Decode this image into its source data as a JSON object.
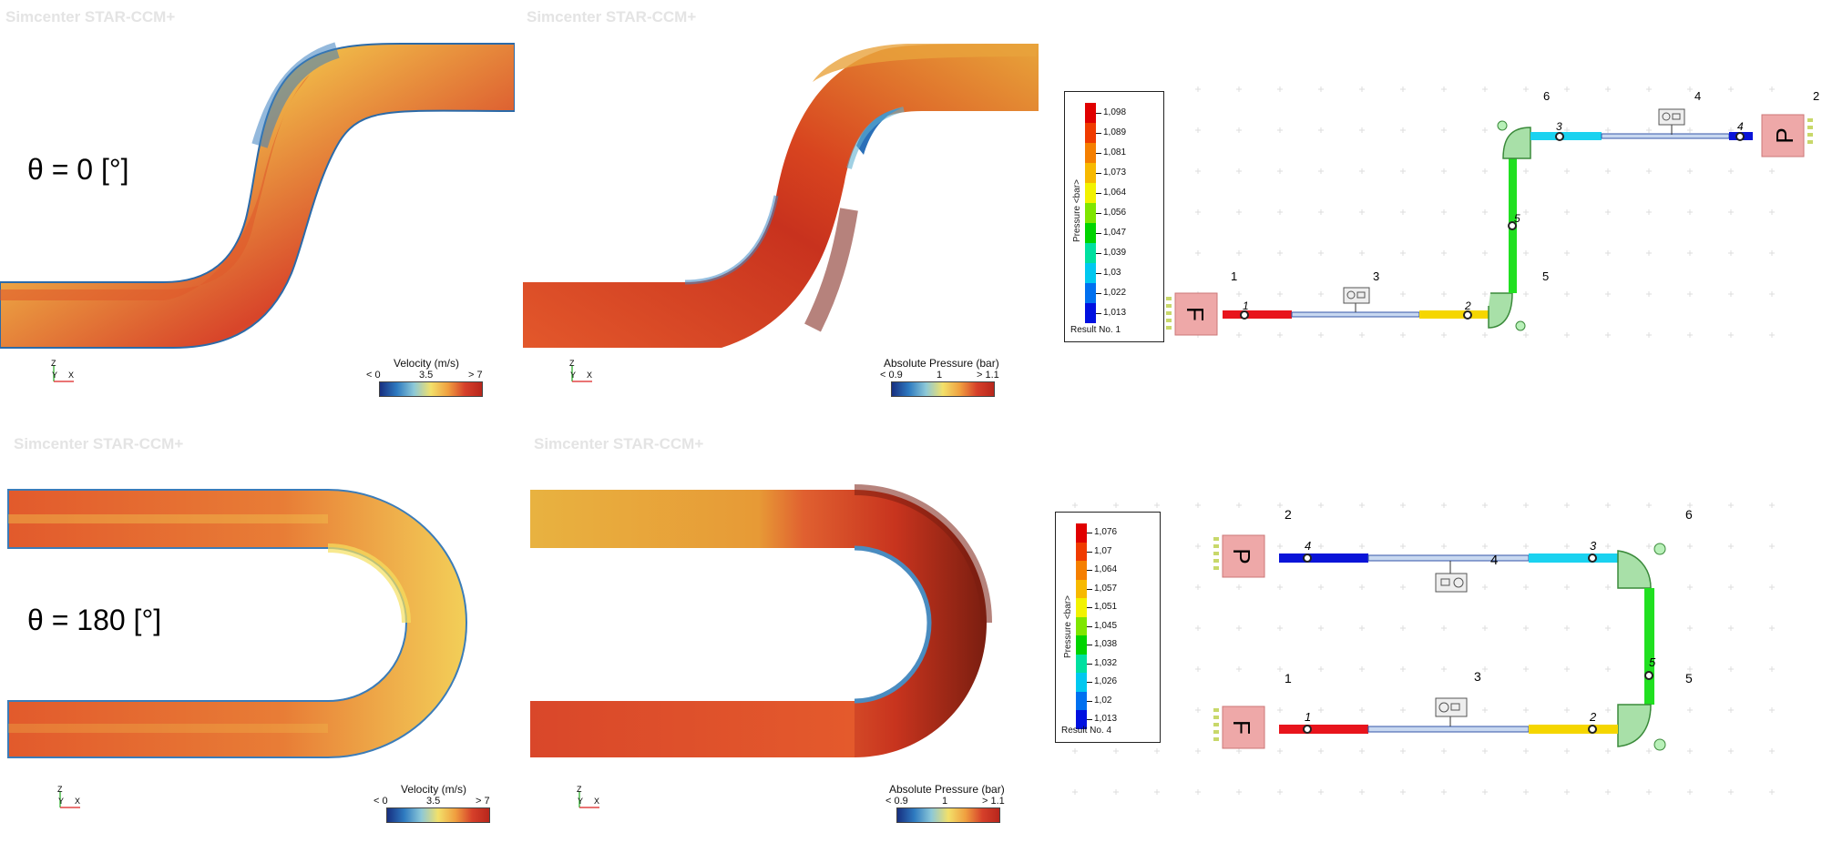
{
  "watermark": "Simcenter STAR-CCM+",
  "rows": [
    {
      "theta_label": "θ = 0 [°]",
      "velocity_bar": {
        "title": "Velocity (m/s)",
        "ticks": [
          "< 0",
          "3.5",
          "> 7"
        ]
      },
      "pressure_bar": {
        "title": "Absolute Pressure (bar)",
        "ticks": [
          "< 0.9",
          "1",
          "> 1.1"
        ]
      },
      "legend": {
        "axis_title": "Pressure <bar>",
        "values": [
          "1,098",
          "1,089",
          "1,081",
          "1,073",
          "1,064",
          "1,056",
          "1,047",
          "1,039",
          "1,03",
          "1,022",
          "1,013"
        ],
        "result": "Result No. 1"
      },
      "network": {
        "source_label": "F",
        "sink_label": "P",
        "node_numbers": [
          "1",
          "3",
          "5",
          "6",
          "4",
          "2"
        ],
        "pipe_numbers": [
          "1",
          "2",
          "3",
          "4",
          "5"
        ]
      }
    },
    {
      "theta_label": "θ = 180 [°]",
      "velocity_bar": {
        "title": "Velocity (m/s)",
        "ticks": [
          "< 0",
          "3.5",
          "> 7"
        ]
      },
      "pressure_bar": {
        "title": "Absolute Pressure (bar)",
        "ticks": [
          "< 0.9",
          "1",
          "> 1.1"
        ]
      },
      "legend": {
        "axis_title": "Pressure <bar>",
        "values": [
          "1,076",
          "1,07",
          "1,064",
          "1,057",
          "1,051",
          "1,045",
          "1,038",
          "1,032",
          "1,026",
          "1,02",
          "1,013"
        ],
        "result": "Result No. 4"
      },
      "network": {
        "source_label": "F",
        "sink_label": "P",
        "node_numbers": [
          "2",
          "6",
          "1",
          "3",
          "5"
        ],
        "pipe_numbers": [
          "4",
          "3",
          "5",
          "1",
          "2"
        ],
        "extra_label": "4"
      }
    }
  ],
  "axis_letters": {
    "z": "Z",
    "y": "Y",
    "x": "X"
  },
  "colors": {
    "legend_scale": [
      "#e00000",
      "#f03b00",
      "#f57f00",
      "#f7b900",
      "#f2f200",
      "#7fe600",
      "#00d400",
      "#00e0a0",
      "#00c8f0",
      "#0070f0",
      "#0010e0"
    ],
    "cfd_low": "#1f3b8f",
    "cfd_mid": "#f0e046",
    "cfd_high": "#c6281c",
    "pipe_red": "#e8141c",
    "pipe_yellow": "#f5d600",
    "pipe_cyan": "#1ad2f0",
    "pipe_blue": "#0a14d8",
    "pipe_green": "#20e020",
    "box_fill": "#eea8a8"
  }
}
